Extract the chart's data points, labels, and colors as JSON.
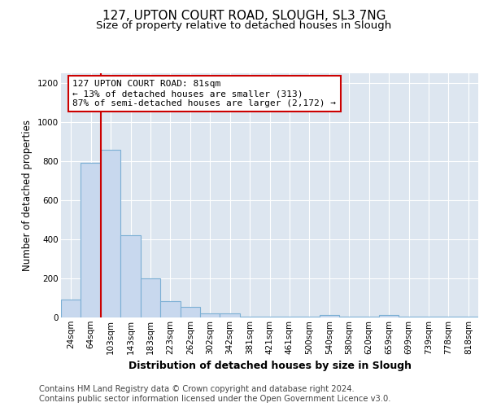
{
  "title": "127, UPTON COURT ROAD, SLOUGH, SL3 7NG",
  "subtitle": "Size of property relative to detached houses in Slough",
  "xlabel": "Distribution of detached houses by size in Slough",
  "ylabel": "Number of detached properties",
  "categories": [
    "24sqm",
    "64sqm",
    "103sqm",
    "143sqm",
    "183sqm",
    "223sqm",
    "262sqm",
    "302sqm",
    "342sqm",
    "381sqm",
    "421sqm",
    "461sqm",
    "500sqm",
    "540sqm",
    "580sqm",
    "620sqm",
    "659sqm",
    "699sqm",
    "739sqm",
    "778sqm",
    "818sqm"
  ],
  "values": [
    90,
    790,
    860,
    420,
    200,
    85,
    55,
    20,
    20,
    5,
    5,
    5,
    5,
    12,
    5,
    5,
    12,
    5,
    5,
    5,
    5
  ],
  "bar_fill_color": "#c8d8ee",
  "bar_edge_color": "#7bafd4",
  "vline_color": "#cc0000",
  "annotation_text": "127 UPTON COURT ROAD: 81sqm\n← 13% of detached houses are smaller (313)\n87% of semi-detached houses are larger (2,172) →",
  "annotation_box_color": "white",
  "annotation_box_edge": "#cc0000",
  "ylim": [
    0,
    1250
  ],
  "yticks": [
    0,
    200,
    400,
    600,
    800,
    1000,
    1200
  ],
  "background_color": "#dde6f0",
  "grid_color": "#ffffff",
  "footer": "Contains HM Land Registry data © Crown copyright and database right 2024.\nContains public sector information licensed under the Open Government Licence v3.0.",
  "title_fontsize": 11,
  "subtitle_fontsize": 9.5,
  "xlabel_fontsize": 9,
  "ylabel_fontsize": 8.5,
  "tick_fontsize": 7.5,
  "footer_fontsize": 7.2,
  "annotation_fontsize": 8
}
